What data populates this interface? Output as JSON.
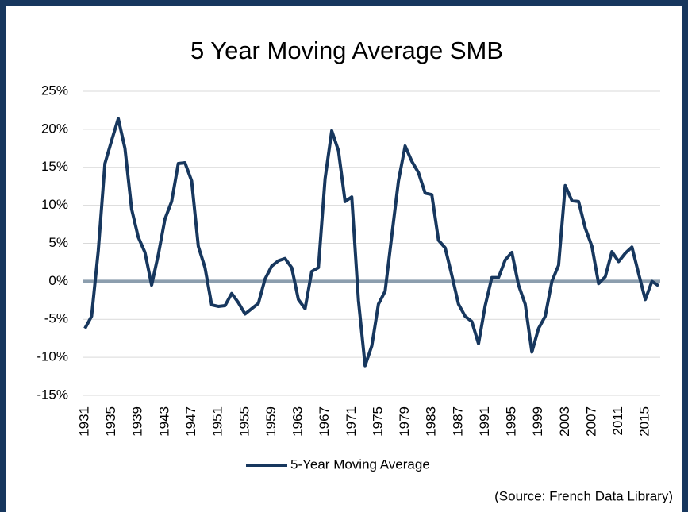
{
  "chart_data": {
    "type": "line",
    "title": "5 Year Moving Average SMB",
    "source": "(Source: French Data Library)",
    "x": [
      1931,
      1932,
      1933,
      1934,
      1935,
      1936,
      1937,
      1938,
      1939,
      1940,
      1941,
      1942,
      1943,
      1944,
      1945,
      1946,
      1947,
      1948,
      1949,
      1950,
      1951,
      1952,
      1953,
      1954,
      1955,
      1956,
      1957,
      1958,
      1959,
      1960,
      1961,
      1962,
      1963,
      1964,
      1965,
      1966,
      1967,
      1968,
      1969,
      1970,
      1971,
      1972,
      1973,
      1974,
      1975,
      1976,
      1977,
      1978,
      1979,
      1980,
      1981,
      1982,
      1983,
      1984,
      1985,
      1986,
      1987,
      1988,
      1989,
      1990,
      1991,
      1992,
      1993,
      1994,
      1995,
      1996,
      1997,
      1998,
      1999,
      2000,
      2001,
      2002,
      2003,
      2004,
      2005,
      2006,
      2007,
      2008,
      2009,
      2010,
      2011,
      2012,
      2013,
      2014,
      2015,
      2016,
      2017
    ],
    "series": [
      {
        "name": "5-Year Moving Average",
        "color": "#17375e",
        "values": [
          -6.2,
          -4.6,
          4.0,
          15.5,
          18.5,
          21.4,
          17.5,
          9.5,
          5.8,
          3.8,
          -0.5,
          3.5,
          8.2,
          10.5,
          15.5,
          15.6,
          13.2,
          4.6,
          1.8,
          -3.1,
          -3.3,
          -3.2,
          -1.6,
          -2.8,
          -4.3,
          -3.6,
          -2.9,
          0.3,
          2.0,
          2.7,
          3.0,
          1.8,
          -2.4,
          -3.6,
          1.3,
          1.8,
          13.5,
          19.8,
          17.2,
          10.5,
          11.1,
          -2.5,
          -11.1,
          -8.5,
          -3.0,
          -1.3,
          6.0,
          13.2,
          17.8,
          15.8,
          14.3,
          11.6,
          11.4,
          5.4,
          4.4,
          0.8,
          -3.0,
          -4.6,
          -5.3,
          -8.2,
          -3.2,
          0.5,
          0.5,
          2.8,
          3.8,
          -0.5,
          -3.0,
          -9.3,
          -6.2,
          -4.6,
          0.0,
          2.1,
          12.6,
          10.6,
          10.5,
          7.0,
          4.6,
          -0.3,
          0.6,
          3.9,
          2.6,
          3.7,
          4.5,
          1.0,
          -2.4,
          0.0,
          -0.6
        ]
      }
    ],
    "xlim": [
      1931,
      2017
    ],
    "xticks": [
      1931,
      1935,
      1939,
      1943,
      1947,
      1951,
      1955,
      1959,
      1963,
      1967,
      1971,
      1975,
      1979,
      1983,
      1987,
      1991,
      1995,
      1999,
      2003,
      2007,
      2011,
      2015
    ],
    "ylim": [
      -15,
      25
    ],
    "yticks": [
      {
        "value": -15,
        "label": "-15%"
      },
      {
        "value": -10,
        "label": "-10%"
      },
      {
        "value": -5,
        "label": "-5%"
      },
      {
        "value": 0,
        "label": "0%"
      },
      {
        "value": 5,
        "label": "5%"
      },
      {
        "value": 10,
        "label": "10%"
      },
      {
        "value": 15,
        "label": "15%"
      },
      {
        "value": 20,
        "label": "20%"
      },
      {
        "value": 25,
        "label": "25%"
      }
    ],
    "grid": true,
    "legend": "bottom"
  }
}
